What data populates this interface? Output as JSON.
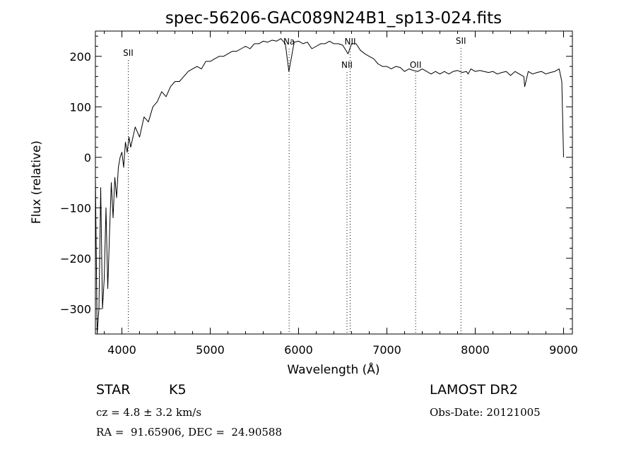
{
  "chart_data": {
    "type": "line",
    "title": "spec-56206-GAC089N24B1_sp13-024.fits",
    "xlabel": "Wavelength (Å)",
    "ylabel": "Flux (relative)",
    "xlim": [
      3700,
      9100
    ],
    "ylim": [
      -350,
      250
    ],
    "xticks": [
      4000,
      5000,
      6000,
      7000,
      8000,
      9000
    ],
    "yticks": [
      -300,
      -200,
      -100,
      0,
      100,
      200
    ],
    "grid": false,
    "series": [
      {
        "x": [
          3700,
          3720,
          3740,
          3760,
          3780,
          3800,
          3820,
          3840,
          3860,
          3880,
          3900,
          3920,
          3940,
          3960,
          3980,
          4000,
          4020,
          4040,
          4060,
          4080,
          4100,
          4150,
          4200,
          4250,
          4300,
          4350,
          4400,
          4450,
          4500,
          4550,
          4600,
          4650,
          4700,
          4750,
          4800,
          4850,
          4900,
          4950,
          5000,
          5050,
          5100,
          5150,
          5200,
          5250,
          5300,
          5350,
          5400,
          5450,
          5500,
          5550,
          5600,
          5650,
          5700,
          5750,
          5800,
          5850,
          5890,
          5950,
          6000,
          6050,
          6100,
          6150,
          6200,
          6250,
          6300,
          6350,
          6400,
          6450,
          6500,
          6560,
          6600,
          6650,
          6700,
          6750,
          6800,
          6850,
          6900,
          6950,
          7000,
          7050,
          7100,
          7150,
          7200,
          7250,
          7300,
          7350,
          7400,
          7450,
          7500,
          7550,
          7600,
          7650,
          7700,
          7750,
          7800,
          7850,
          7900,
          7920,
          7950,
          8000,
          8050,
          8100,
          8150,
          8200,
          8250,
          8300,
          8350,
          8400,
          8450,
          8500,
          8550,
          8560,
          8600,
          8650,
          8700,
          8750,
          8800,
          8850,
          8900,
          8950,
          8980,
          9000
        ],
        "y": [
          -40,
          -350,
          -300,
          -60,
          -300,
          -240,
          -100,
          -260,
          -150,
          -50,
          -120,
          -40,
          -80,
          -20,
          0,
          10,
          -20,
          30,
          10,
          40,
          20,
          60,
          40,
          80,
          70,
          100,
          110,
          130,
          120,
          140,
          150,
          150,
          160,
          170,
          175,
          180,
          175,
          190,
          190,
          195,
          200,
          200,
          205,
          210,
          210,
          215,
          220,
          215,
          225,
          225,
          230,
          228,
          232,
          230,
          235,
          225,
          170,
          228,
          230,
          225,
          228,
          215,
          220,
          225,
          225,
          230,
          225,
          225,
          222,
          205,
          225,
          225,
          212,
          205,
          200,
          195,
          185,
          180,
          180,
          175,
          180,
          178,
          170,
          175,
          172,
          170,
          175,
          170,
          165,
          170,
          165,
          170,
          165,
          170,
          172,
          168,
          170,
          165,
          175,
          170,
          172,
          170,
          168,
          170,
          165,
          168,
          170,
          162,
          170,
          165,
          160,
          140,
          170,
          165,
          168,
          170,
          165,
          168,
          170,
          175,
          150,
          0
        ]
      }
    ],
    "annotations": [
      {
        "text": "SII",
        "x": 4072,
        "label_level": 1
      },
      {
        "text": "Na",
        "x": 5893,
        "label_level": 2
      },
      {
        "text": "NII",
        "x": 6548,
        "label_level": 3
      },
      {
        "text": "NII",
        "x": 6584,
        "label_level": 2
      },
      {
        "text": "OII",
        "x": 7325,
        "label_level": 3
      },
      {
        "text": "SII",
        "x": 7838,
        "label_level": 4
      }
    ]
  },
  "info": {
    "class_label": "STAR",
    "subclass": "K5",
    "survey": "LAMOST DR2",
    "cz_line": "cz = 4.8 ± 3.2 km/s",
    "obs_date_line": "Obs-Date: 20121005",
    "coord_line": "RA =  91.65906, DEC =  24.90588"
  }
}
